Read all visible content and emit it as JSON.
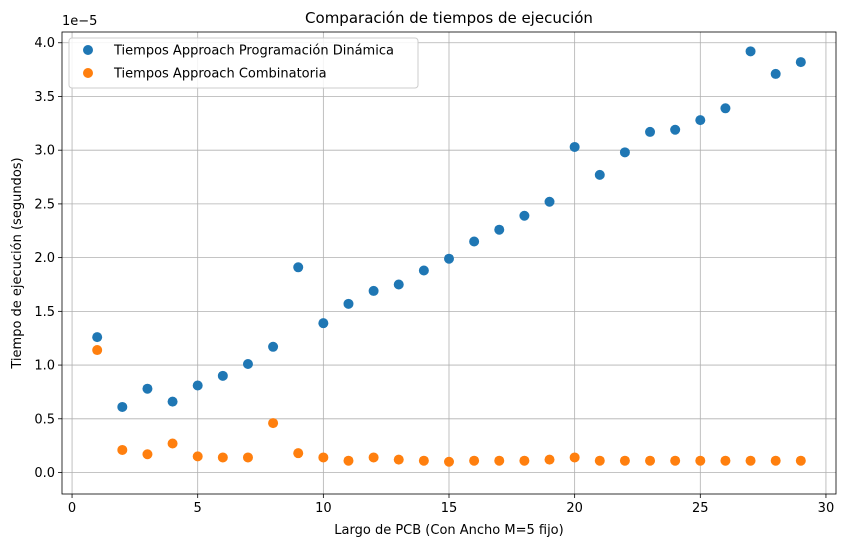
{
  "chart_data": {
    "type": "scatter",
    "title": "Comparación de tiempos de ejecución",
    "xlabel": "Largo de PCB (Con Ancho M=5 fijo)",
    "ylabel": "Tiempo de ejecución (segundos)",
    "y_offset_text": "1e−5",
    "xlim": [
      -0.4,
      30.4
    ],
    "ylim": [
      -0.2,
      4.1
    ],
    "y_scale_factor": 1e-05,
    "xticks": [
      0,
      5,
      10,
      15,
      20,
      25,
      30
    ],
    "xtick_labels": [
      "0",
      "5",
      "10",
      "15",
      "20",
      "25",
      "30"
    ],
    "yticks": [
      0.0,
      0.5,
      1.0,
      1.5,
      2.0,
      2.5,
      3.0,
      3.5,
      4.0
    ],
    "ytick_labels": [
      "0.0",
      "0.5",
      "1.0",
      "1.5",
      "2.0",
      "2.5",
      "3.0",
      "3.5",
      "4.0"
    ],
    "grid": true,
    "legend_position": "top-left",
    "series": [
      {
        "name": "Tiempos Approach Programación Dinámica",
        "color": "#1f77b4",
        "x": [
          1,
          2,
          3,
          4,
          5,
          6,
          7,
          8,
          9,
          10,
          11,
          12,
          13,
          14,
          15,
          16,
          17,
          18,
          19,
          20,
          21,
          22,
          23,
          24,
          25,
          26,
          27,
          28,
          29
        ],
        "y": [
          1.26,
          0.61,
          0.78,
          0.66,
          0.81,
          0.9,
          1.01,
          1.17,
          1.91,
          1.39,
          1.57,
          1.69,
          1.75,
          1.88,
          1.99,
          2.15,
          2.26,
          2.39,
          2.52,
          3.03,
          2.77,
          2.98,
          3.17,
          3.19,
          3.28,
          3.39,
          3.92,
          3.71,
          3.82
        ]
      },
      {
        "name": "Tiempos Approach Combinatoria",
        "color": "#ff7f0e",
        "x": [
          1,
          2,
          3,
          4,
          5,
          6,
          7,
          8,
          9,
          10,
          11,
          12,
          13,
          14,
          15,
          16,
          17,
          18,
          19,
          20,
          21,
          22,
          23,
          24,
          25,
          26,
          27,
          28,
          29
        ],
        "y": [
          1.14,
          0.21,
          0.17,
          0.27,
          0.15,
          0.14,
          0.14,
          0.46,
          0.18,
          0.14,
          0.11,
          0.14,
          0.12,
          0.11,
          0.1,
          0.11,
          0.11,
          0.11,
          0.12,
          0.14,
          0.11,
          0.11,
          0.11,
          0.11,
          0.11,
          0.11,
          0.11,
          0.11,
          0.11
        ]
      }
    ]
  }
}
